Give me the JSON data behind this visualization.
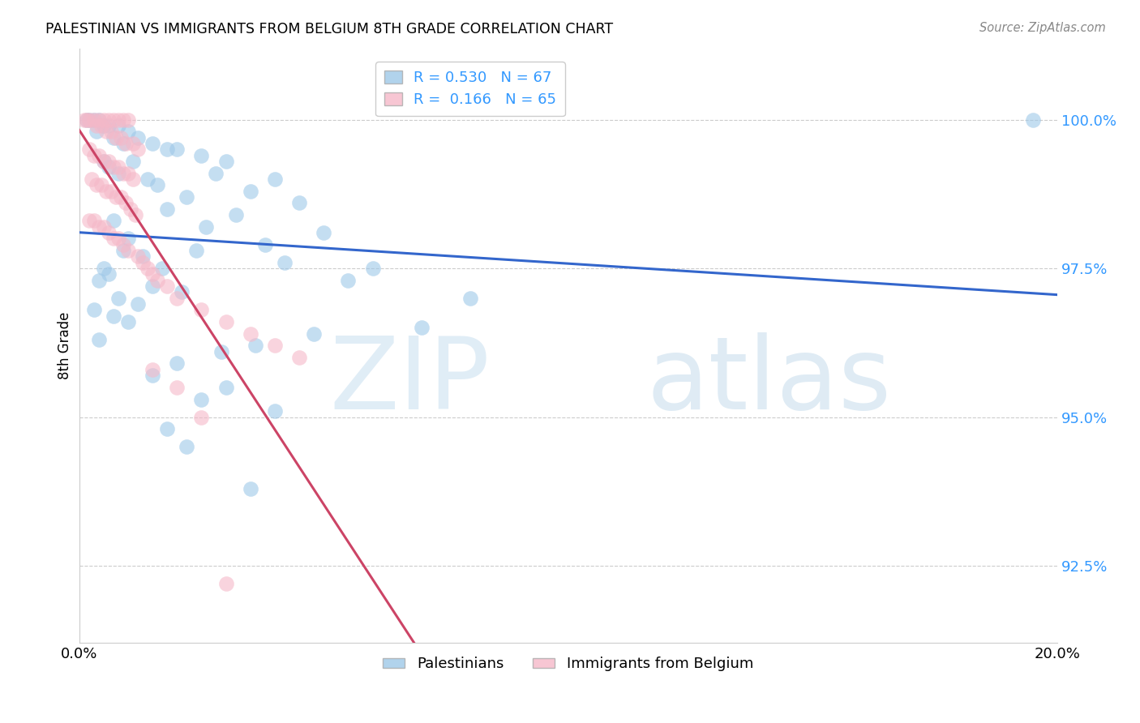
{
  "title": "PALESTINIAN VS IMMIGRANTS FROM BELGIUM 8TH GRADE CORRELATION CHART",
  "source": "Source: ZipAtlas.com",
  "ylabel": "8th Grade",
  "yticks": [
    92.5,
    95.0,
    97.5,
    100.0
  ],
  "ytick_labels": [
    "92.5%",
    "95.0%",
    "97.5%",
    "100.0%"
  ],
  "xlim": [
    0.0,
    20.0
  ],
  "ylim": [
    91.2,
    101.2
  ],
  "blue_R": 0.53,
  "blue_N": 67,
  "pink_R": 0.166,
  "pink_N": 65,
  "blue_color": "#9ec8e8",
  "pink_color": "#f5b8c8",
  "blue_line_color": "#3366cc",
  "pink_line_color": "#cc4466",
  "legend_blue_label": "Palestinians",
  "legend_pink_label": "Immigrants from Belgium",
  "watermark_zip": "ZIP",
  "watermark_atlas": "atlas",
  "blue_points": [
    [
      0.2,
      100.0
    ],
    [
      0.3,
      100.0
    ],
    [
      0.4,
      100.0
    ],
    [
      0.15,
      100.0
    ],
    [
      0.5,
      99.9
    ],
    [
      0.6,
      99.9
    ],
    [
      0.8,
      99.9
    ],
    [
      1.0,
      99.8
    ],
    [
      0.35,
      99.8
    ],
    [
      0.7,
      99.7
    ],
    [
      1.2,
      99.7
    ],
    [
      0.9,
      99.6
    ],
    [
      1.5,
      99.6
    ],
    [
      2.0,
      99.5
    ],
    [
      1.8,
      99.5
    ],
    [
      2.5,
      99.4
    ],
    [
      0.5,
      99.3
    ],
    [
      1.1,
      99.3
    ],
    [
      3.0,
      99.3
    ],
    [
      0.6,
      99.2
    ],
    [
      0.8,
      99.1
    ],
    [
      2.8,
      99.1
    ],
    [
      1.4,
      99.0
    ],
    [
      4.0,
      99.0
    ],
    [
      1.6,
      98.9
    ],
    [
      3.5,
      98.8
    ],
    [
      2.2,
      98.7
    ],
    [
      4.5,
      98.6
    ],
    [
      1.8,
      98.5
    ],
    [
      3.2,
      98.4
    ],
    [
      0.7,
      98.3
    ],
    [
      2.6,
      98.2
    ],
    [
      5.0,
      98.1
    ],
    [
      1.0,
      98.0
    ],
    [
      3.8,
      97.9
    ],
    [
      2.4,
      97.8
    ],
    [
      0.9,
      97.8
    ],
    [
      1.3,
      97.7
    ],
    [
      4.2,
      97.6
    ],
    [
      1.7,
      97.5
    ],
    [
      0.5,
      97.5
    ],
    [
      0.6,
      97.4
    ],
    [
      0.4,
      97.3
    ],
    [
      1.5,
      97.2
    ],
    [
      2.1,
      97.1
    ],
    [
      0.8,
      97.0
    ],
    [
      1.2,
      96.9
    ],
    [
      0.3,
      96.8
    ],
    [
      0.7,
      96.7
    ],
    [
      1.0,
      96.6
    ],
    [
      5.5,
      97.3
    ],
    [
      6.0,
      97.5
    ],
    [
      4.8,
      96.4
    ],
    [
      0.4,
      96.3
    ],
    [
      3.6,
      96.2
    ],
    [
      2.9,
      96.1
    ],
    [
      7.0,
      96.5
    ],
    [
      8.0,
      97.0
    ],
    [
      2.0,
      95.9
    ],
    [
      1.5,
      95.7
    ],
    [
      3.0,
      95.5
    ],
    [
      2.5,
      95.3
    ],
    [
      4.0,
      95.1
    ],
    [
      1.8,
      94.8
    ],
    [
      2.2,
      94.5
    ],
    [
      3.5,
      93.8
    ],
    [
      19.5,
      100.0
    ]
  ],
  "pink_points": [
    [
      0.1,
      100.0
    ],
    [
      0.2,
      100.0
    ],
    [
      0.3,
      100.0
    ],
    [
      0.4,
      100.0
    ],
    [
      0.15,
      100.0
    ],
    [
      0.5,
      100.0
    ],
    [
      0.6,
      100.0
    ],
    [
      0.7,
      100.0
    ],
    [
      0.8,
      100.0
    ],
    [
      0.9,
      100.0
    ],
    [
      1.0,
      100.0
    ],
    [
      0.35,
      99.9
    ],
    [
      0.45,
      99.9
    ],
    [
      0.55,
      99.8
    ],
    [
      0.65,
      99.8
    ],
    [
      0.75,
      99.7
    ],
    [
      0.85,
      99.7
    ],
    [
      0.95,
      99.6
    ],
    [
      1.1,
      99.6
    ],
    [
      1.2,
      99.5
    ],
    [
      0.2,
      99.5
    ],
    [
      0.3,
      99.4
    ],
    [
      0.4,
      99.4
    ],
    [
      0.5,
      99.3
    ],
    [
      0.6,
      99.3
    ],
    [
      0.7,
      99.2
    ],
    [
      0.8,
      99.2
    ],
    [
      0.9,
      99.1
    ],
    [
      1.0,
      99.1
    ],
    [
      1.1,
      99.0
    ],
    [
      0.25,
      99.0
    ],
    [
      0.35,
      98.9
    ],
    [
      0.45,
      98.9
    ],
    [
      0.55,
      98.8
    ],
    [
      0.65,
      98.8
    ],
    [
      0.75,
      98.7
    ],
    [
      0.85,
      98.7
    ],
    [
      0.95,
      98.6
    ],
    [
      1.05,
      98.5
    ],
    [
      1.15,
      98.4
    ],
    [
      0.2,
      98.3
    ],
    [
      0.3,
      98.3
    ],
    [
      0.4,
      98.2
    ],
    [
      0.5,
      98.2
    ],
    [
      0.6,
      98.1
    ],
    [
      0.7,
      98.0
    ],
    [
      0.8,
      98.0
    ],
    [
      0.9,
      97.9
    ],
    [
      1.0,
      97.8
    ],
    [
      1.2,
      97.7
    ],
    [
      1.3,
      97.6
    ],
    [
      1.4,
      97.5
    ],
    [
      1.5,
      97.4
    ],
    [
      1.6,
      97.3
    ],
    [
      1.8,
      97.2
    ],
    [
      2.0,
      97.0
    ],
    [
      2.5,
      96.8
    ],
    [
      3.0,
      96.6
    ],
    [
      3.5,
      96.4
    ],
    [
      4.0,
      96.2
    ],
    [
      4.5,
      96.0
    ],
    [
      1.5,
      95.8
    ],
    [
      2.0,
      95.5
    ],
    [
      2.5,
      95.0
    ],
    [
      3.0,
      92.2
    ]
  ]
}
